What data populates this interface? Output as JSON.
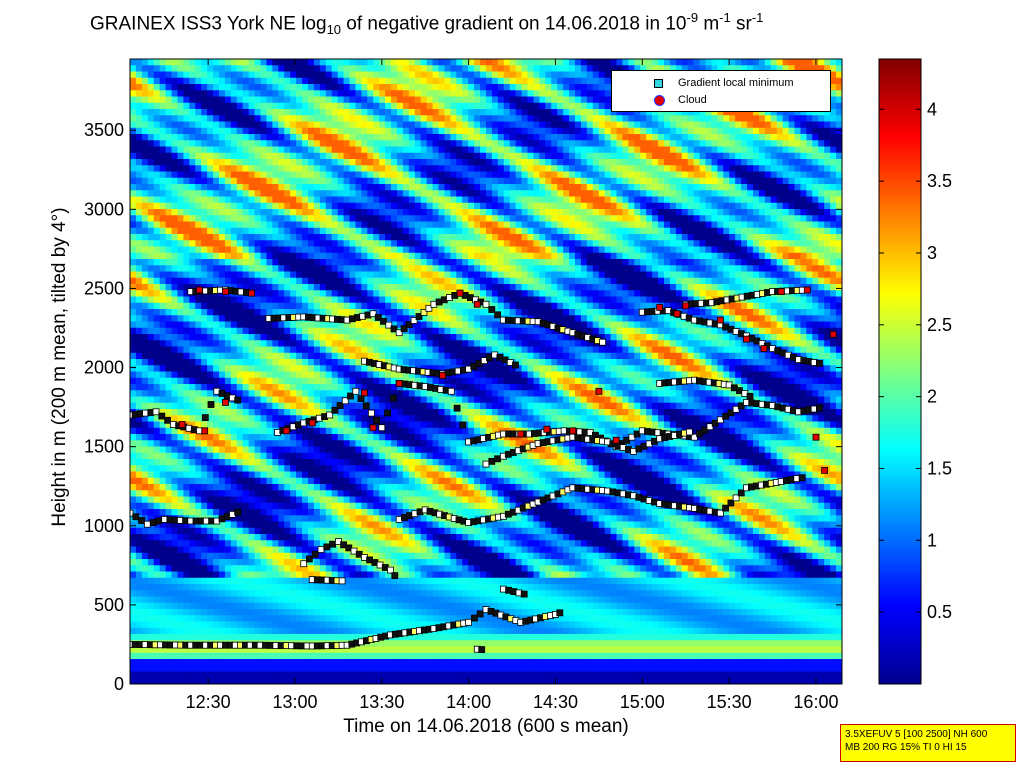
{
  "title_main": "GRAINEX ISS3 York NE log",
  "title_sub10": "10",
  "title_mid": " of negative gradient on 14.06.2018 in 10",
  "title_exp1": "-9",
  "title_unit1": " m",
  "title_exp2": "-1",
  "title_unit2": " sr",
  "title_exp3": "-1",
  "chart_data": {
    "type": "heatmap",
    "xlabel": "Time on 14.06.2018 (600 s mean)",
    "ylabel": "Height in m (200 m mean, tilted by 4°)",
    "x_range_hours": [
      12.05,
      16.15
    ],
    "x_ticks": [
      {
        "label": "12:30",
        "value": 12.5
      },
      {
        "label": "13:00",
        "value": 13.0
      },
      {
        "label": "13:30",
        "value": 13.5
      },
      {
        "label": "14:00",
        "value": 14.0
      },
      {
        "label": "14:30",
        "value": 14.5
      },
      {
        "label": "15:00",
        "value": 15.0
      },
      {
        "label": "15:30",
        "value": 15.5
      },
      {
        "label": "16:00",
        "value": 16.0
      }
    ],
    "ylim": [
      0,
      3950
    ],
    "y_ticks": [
      0,
      500,
      1000,
      1500,
      2000,
      2500,
      3000,
      3500
    ],
    "colorbar": {
      "min": 0,
      "max": 4.35,
      "ticks": [
        0.5,
        1,
        1.5,
        2,
        2.5,
        3,
        3.5,
        4
      ],
      "colormap": "jet"
    },
    "legend": {
      "placement": "top-right",
      "entries": [
        "Gradient local minimum",
        "Cloud"
      ]
    },
    "colors": {
      "minimum_marker": "#33d6e0",
      "cloud_marker": "#e00000",
      "cloud_edge": "#2030ff"
    },
    "gradient_minimum_layers": [
      {
        "points": [
          [
            12.05,
            250
          ],
          [
            12.4,
            245
          ],
          [
            12.8,
            245
          ],
          [
            13.1,
            240
          ],
          [
            13.3,
            245
          ],
          [
            13.55,
            310
          ],
          [
            13.8,
            350
          ],
          [
            14.0,
            390
          ],
          [
            14.1,
            470
          ],
          [
            14.3,
            390
          ],
          [
            14.5,
            440
          ],
          [
            14.55,
            460
          ]
        ]
      },
      {
        "points": [
          [
            13.05,
            760
          ],
          [
            13.15,
            850
          ],
          [
            13.25,
            900
          ],
          [
            13.4,
            800
          ],
          [
            13.55,
            720
          ],
          [
            13.6,
            650
          ]
        ]
      },
      {
        "points": [
          [
            13.1,
            660
          ],
          [
            13.3,
            650
          ]
        ]
      },
      {
        "points": [
          [
            14.2,
            600
          ],
          [
            14.35,
            560
          ]
        ]
      },
      {
        "points": [
          [
            14.05,
            220
          ],
          [
            14.1,
            215
          ]
        ]
      },
      {
        "points": [
          [
            12.05,
            1080
          ],
          [
            12.15,
            1010
          ],
          [
            12.25,
            1040
          ],
          [
            12.4,
            1030
          ],
          [
            12.55,
            1030
          ],
          [
            12.7,
            1100
          ]
        ]
      },
      {
        "points": [
          [
            13.6,
            1040
          ],
          [
            13.75,
            1100
          ],
          [
            14.0,
            1020
          ],
          [
            14.2,
            1060
          ],
          [
            14.4,
            1150
          ],
          [
            14.6,
            1240
          ],
          [
            14.8,
            1220
          ],
          [
            14.95,
            1190
          ],
          [
            15.1,
            1140
          ],
          [
            15.3,
            1110
          ],
          [
            15.45,
            1080
          ],
          [
            15.6,
            1240
          ],
          [
            15.8,
            1280
          ],
          [
            15.95,
            1310
          ]
        ]
      },
      {
        "points": [
          [
            12.05,
            1700
          ],
          [
            12.2,
            1720
          ],
          [
            12.3,
            1640
          ],
          [
            12.45,
            1600
          ],
          [
            12.55,
            1850
          ],
          [
            12.7,
            1780
          ]
        ]
      },
      {
        "points": [
          [
            12.9,
            1590
          ],
          [
            13.05,
            1650
          ],
          [
            13.2,
            1700
          ],
          [
            13.35,
            1850
          ],
          [
            13.5,
            1620
          ],
          [
            13.6,
            1900
          ],
          [
            13.75,
            1880
          ],
          [
            13.9,
            1850
          ],
          [
            14.0,
            1530
          ],
          [
            14.2,
            1580
          ],
          [
            14.35,
            1580
          ],
          [
            14.55,
            1600
          ],
          [
            14.7,
            1590
          ],
          [
            14.85,
            1500
          ],
          [
            15.0,
            1600
          ],
          [
            15.15,
            1580
          ],
          [
            15.3,
            1560
          ],
          [
            15.45,
            1670
          ],
          [
            15.6,
            1780
          ],
          [
            15.75,
            1760
          ],
          [
            15.9,
            1720
          ],
          [
            16.05,
            1750
          ]
        ]
      },
      {
        "points": [
          [
            14.1,
            1390
          ],
          [
            14.2,
            1440
          ],
          [
            14.4,
            1520
          ],
          [
            14.6,
            1560
          ],
          [
            14.8,
            1530
          ],
          [
            14.95,
            1470
          ],
          [
            15.1,
            1550
          ],
          [
            15.3,
            1600
          ]
        ]
      },
      {
        "points": [
          [
            12.4,
            2480
          ],
          [
            12.6,
            2490
          ],
          [
            12.75,
            2470
          ]
        ]
      },
      {
        "points": [
          [
            12.85,
            2310
          ],
          [
            13.05,
            2320
          ],
          [
            13.3,
            2300
          ],
          [
            13.45,
            2340
          ],
          [
            13.6,
            2220
          ],
          [
            13.8,
            2400
          ],
          [
            13.95,
            2470
          ],
          [
            14.1,
            2400
          ],
          [
            14.2,
            2300
          ],
          [
            14.4,
            2290
          ],
          [
            14.6,
            2220
          ],
          [
            14.8,
            2150
          ]
        ]
      },
      {
        "points": [
          [
            13.4,
            2040
          ],
          [
            13.6,
            1990
          ],
          [
            13.85,
            1960
          ],
          [
            14.0,
            1990
          ],
          [
            14.15,
            2080
          ],
          [
            14.3,
            2000
          ]
        ]
      },
      {
        "points": [
          [
            15.0,
            2350
          ],
          [
            15.15,
            2360
          ],
          [
            15.3,
            2300
          ],
          [
            15.45,
            2270
          ],
          [
            15.6,
            2200
          ],
          [
            15.75,
            2120
          ],
          [
            15.9,
            2050
          ],
          [
            16.05,
            2020
          ]
        ]
      },
      {
        "points": [
          [
            15.25,
            2400
          ],
          [
            15.4,
            2410
          ],
          [
            15.75,
            2480
          ],
          [
            15.95,
            2490
          ]
        ]
      },
      {
        "points": [
          [
            15.1,
            1900
          ],
          [
            15.3,
            1920
          ],
          [
            15.5,
            1890
          ],
          [
            15.65,
            1800
          ]
        ]
      }
    ],
    "cloud_points": [
      [
        12.45,
        2490
      ],
      [
        12.6,
        2480
      ],
      [
        12.75,
        2470
      ],
      [
        12.35,
        1640
      ],
      [
        12.48,
        1600
      ],
      [
        12.6,
        1780
      ],
      [
        12.95,
        1600
      ],
      [
        13.1,
        1650
      ],
      [
        13.4,
        1840
      ],
      [
        13.45,
        1620
      ],
      [
        13.6,
        1900
      ],
      [
        13.85,
        1950
      ],
      [
        13.95,
        2470
      ],
      [
        14.05,
        2400
      ],
      [
        14.3,
        1580
      ],
      [
        14.45,
        1610
      ],
      [
        14.6,
        1600
      ],
      [
        14.75,
        1850
      ],
      [
        14.85,
        1540
      ],
      [
        15.1,
        2380
      ],
      [
        15.2,
        2340
      ],
      [
        15.45,
        2300
      ],
      [
        15.6,
        2180
      ],
      [
        15.7,
        2120
      ],
      [
        15.8,
        2480
      ],
      [
        15.95,
        2490
      ],
      [
        16.0,
        1560
      ],
      [
        16.1,
        2210
      ],
      [
        16.05,
        1350
      ],
      [
        15.25,
        2390
      ]
    ]
  },
  "legend_labels": {
    "minimum": "Gradient local minimum",
    "cloud": "Cloud"
  },
  "info_box": {
    "line1": "3.5XEFUV 5 [100 2500] NH 600",
    "line2": "MB 200 RG 15% TI 0 HI 15"
  }
}
